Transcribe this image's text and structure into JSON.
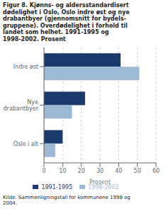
{
  "chart_data": {
    "type": "bar",
    "title": "Figur 8. Kjønns- og aldersstandardisert\ndødelighet i Oslo, Oslo indre øst og nye\ndrabantbyer (gjennomsnitt for bydels-\ngruppene). Overdødelighet i forhold til\nlandet som helhet. 1991-1995 og\n1998-2002. Prosent",
    "orientation": "horizontal",
    "categories": [
      "Indre øst",
      "Nye\ndrabantbyer",
      "Oslo i alt"
    ],
    "series": [
      {
        "name": "1991-1995",
        "color": "#1a3a6b",
        "values": [
          41,
          22,
          10
        ]
      },
      {
        "name": "1998-2002",
        "color": "#9db8d2",
        "values": [
          51,
          15,
          6
        ]
      }
    ],
    "xlabel": "Prosent",
    "xlim": [
      0,
      60
    ],
    "xticks": [
      0,
      10,
      20,
      30,
      40,
      50,
      60
    ],
    "grid": true,
    "legend": "bottom",
    "footnote": "Kilde: Sammenligningstall for kommunene 1998 og\n2004."
  }
}
